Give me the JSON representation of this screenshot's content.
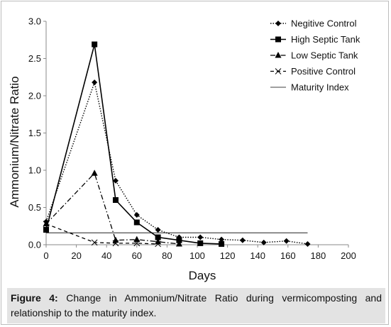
{
  "chart_data": {
    "type": "line",
    "xlabel": "Days",
    "ylabel": "Ammonium/Nitrate Ratio",
    "xlim": [
      0,
      200
    ],
    "ylim": [
      0,
      3.0
    ],
    "x_ticks": [
      "0",
      "20",
      "40",
      "60",
      "80",
      "100",
      "120",
      "140",
      "160",
      "180",
      "200"
    ],
    "y_ticks": [
      "0.0",
      "0.5",
      "1.0",
      "1.5",
      "2.0",
      "2.5",
      "3.0"
    ],
    "grid": false,
    "legend_position": "top-right",
    "series": [
      {
        "name": "Negitive Control",
        "marker": "diamond",
        "line": "dotted",
        "x": [
          0,
          32,
          46,
          60,
          74,
          88,
          102,
          116,
          130,
          144,
          159,
          173
        ],
        "y": [
          0.31,
          2.18,
          0.86,
          0.4,
          0.2,
          0.1,
          0.1,
          0.07,
          0.06,
          0.03,
          0.05,
          0.01
        ]
      },
      {
        "name": "High Septic Tank",
        "marker": "square",
        "line": "solid",
        "x": [
          0,
          32,
          46,
          60,
          74,
          88,
          102,
          116
        ],
        "y": [
          0.2,
          2.69,
          0.6,
          0.3,
          0.1,
          0.06,
          0.02,
          0.01
        ]
      },
      {
        "name": "Low Septic Tank",
        "marker": "triangle",
        "line": "dashdot",
        "x": [
          0,
          32,
          46,
          60,
          74,
          88
        ],
        "y": [
          0.28,
          0.96,
          0.06,
          0.07,
          0.04,
          0.01
        ]
      },
      {
        "name": "Positive Control",
        "marker": "x",
        "line": "dashed",
        "x": [
          0,
          32,
          46,
          60,
          74
        ],
        "y": [
          0.28,
          0.03,
          0.02,
          0.02,
          0.01
        ]
      },
      {
        "name": "Maturity Index",
        "marker": "none",
        "line": "thin-solid",
        "x": [
          0,
          173
        ],
        "y": [
          0.16,
          0.16
        ]
      }
    ]
  },
  "caption": {
    "label": "Figure 4:",
    "text": "Change in Ammonium/Nitrate Ratio during vermicomposting and relationship to the maturity index."
  }
}
